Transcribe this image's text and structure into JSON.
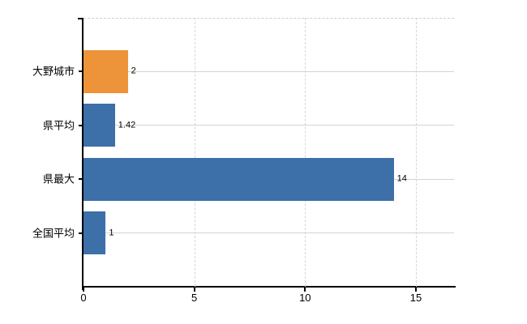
{
  "chart_data": {
    "type": "bar",
    "orientation": "horizontal",
    "title": "",
    "categories": [
      "大野城市",
      "県平均",
      "県最大",
      "全国平均"
    ],
    "series": [
      {
        "name": "",
        "values": [
          2,
          1.42,
          14,
          1
        ]
      }
    ],
    "value_labels": [
      "2",
      "1.42",
      "14",
      "1"
    ],
    "bar_colors": [
      "#ED9339",
      "#3D6FA9",
      "#3D6FA9",
      "#3D6FA9"
    ],
    "xlim": [
      0,
      16.72
    ],
    "x_tick_values": [
      0,
      5,
      10,
      15
    ],
    "x_tick_labels": [
      "0",
      "5",
      "10",
      "15"
    ],
    "ylabel": "",
    "xlabel": "",
    "legend": "none",
    "grid": {
      "vertical": "dashed",
      "horizontal": "solid lines at category centers",
      "top_border": "dashed"
    }
  },
  "colors": {
    "bar_blue": "#3D6FA9",
    "bar_orange": "#ED9339",
    "axis": "#000000",
    "grid_vertical": "#D6D6DA",
    "grid_horizontal": "#CDD7CD",
    "plot_border_top": "#CFCFCF",
    "background": "#FFFFFF",
    "text": "#000000"
  }
}
